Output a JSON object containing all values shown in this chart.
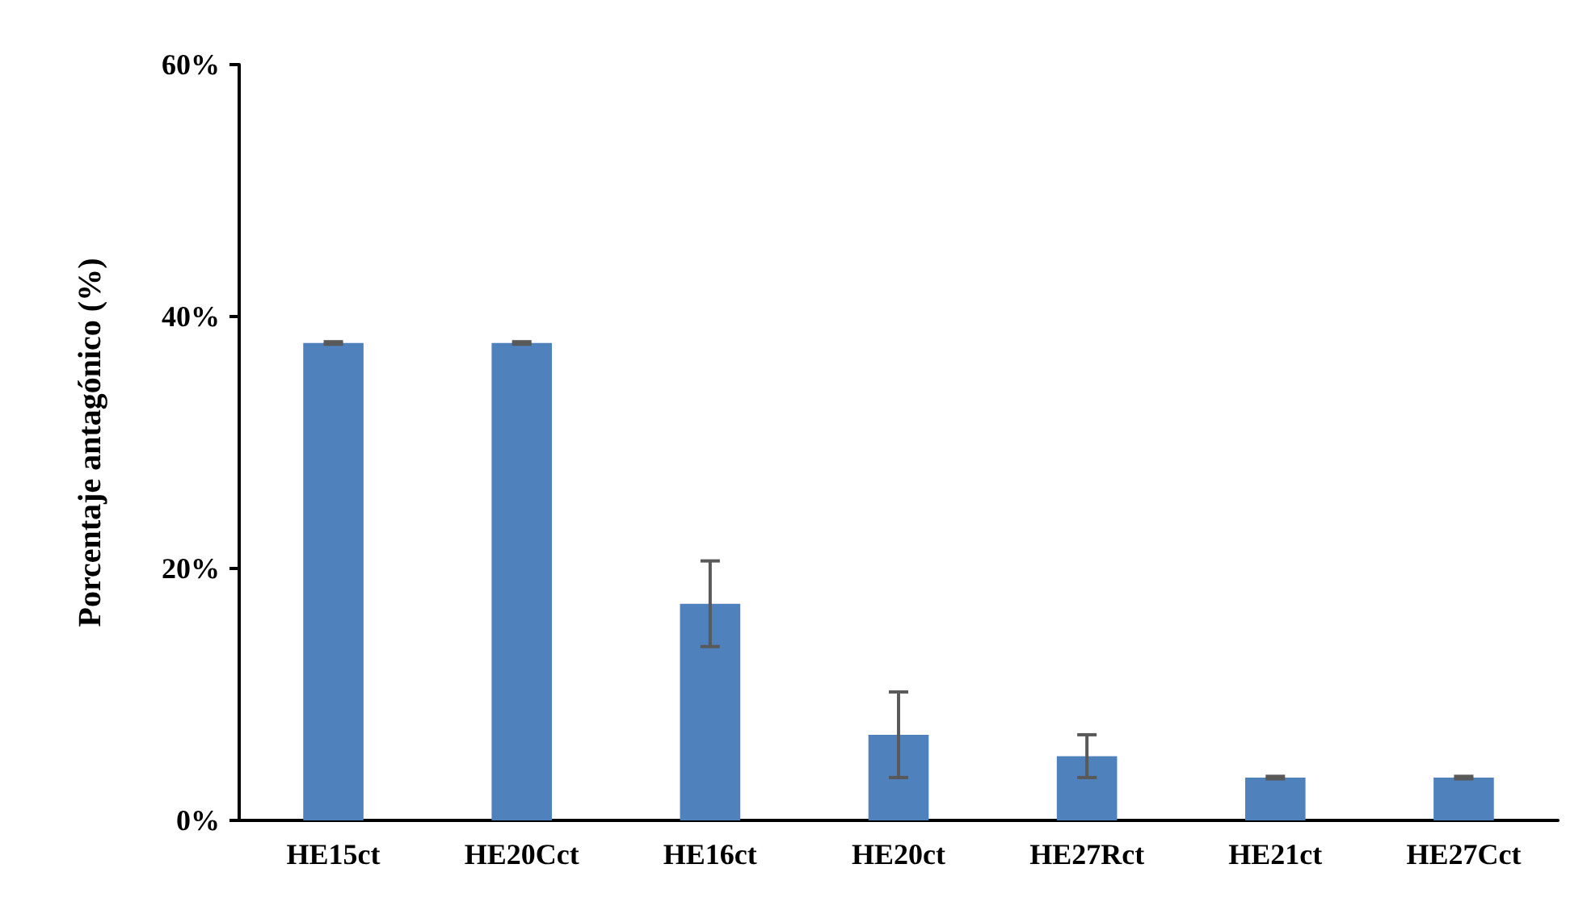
{
  "chart_data": {
    "type": "bar",
    "ylabel": "Porcentaje antagónico (%)",
    "categories": [
      "HE15ct",
      "HE20Cct",
      "HE16ct",
      "HE20ct",
      "HE27Rct",
      "HE21ct",
      "HE27Cct"
    ],
    "values": [
      37.9,
      37.9,
      17.2,
      6.8,
      5.1,
      3.4,
      3.4
    ],
    "errors": [
      0.1,
      0.1,
      3.4,
      3.4,
      1.7,
      0.1,
      0.1
    ],
    "color": "#4f81bd",
    "ylim": [
      0,
      60
    ],
    "yticks": [
      {
        "value": 0,
        "label": "0%"
      },
      {
        "value": 20,
        "label": "20%"
      },
      {
        "value": 40,
        "label": "40%"
      },
      {
        "value": 60,
        "label": "60%"
      }
    ],
    "grid": false
  }
}
